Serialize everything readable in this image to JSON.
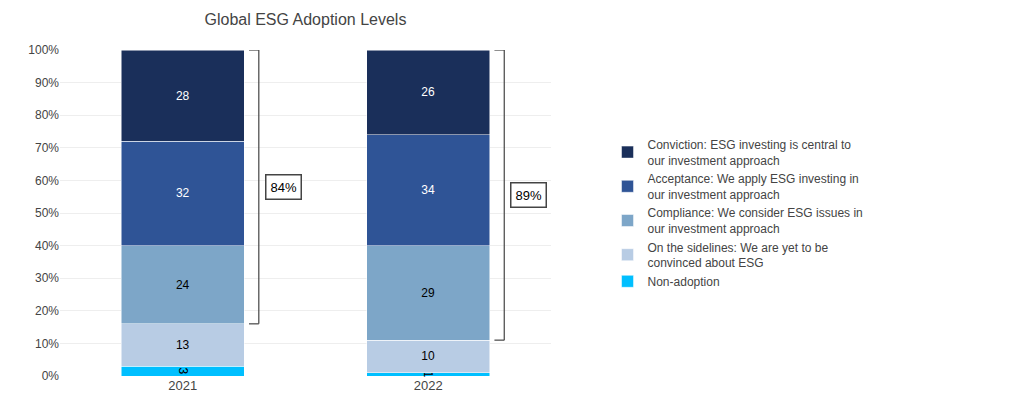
{
  "chart_data": {
    "type": "bar",
    "stacked": true,
    "title": "Global ESG Adoption Levels",
    "categories": [
      "2021",
      "2022"
    ],
    "series": [
      {
        "name": "Non-adoption",
        "color": "#00BFFF",
        "values": [
          3,
          1
        ]
      },
      {
        "name": "On the sidelines: We are yet to be\nconvinced about ESG",
        "color": "#b8cce4",
        "values": [
          13,
          10
        ]
      },
      {
        "name": "Compliance: We consider ESG issues in\nour investment approach",
        "color": "#7da6c8",
        "values": [
          24,
          29
        ]
      },
      {
        "name": "Acceptance: We apply ESG investing in\nour investment approach",
        "color": "#2f5496",
        "values": [
          32,
          34
        ]
      },
      {
        "name": "Conviction: ESG investing is central to\nour investment approach",
        "color": "#1a2f5a",
        "values": [
          28,
          26
        ]
      }
    ],
    "ylim": [
      0,
      100
    ],
    "yticks": [
      {
        "value": 0,
        "label": "0%"
      },
      {
        "value": 10,
        "label": "10%"
      },
      {
        "value": 20,
        "label": "20%"
      },
      {
        "value": 30,
        "label": "30%"
      },
      {
        "value": 40,
        "label": "40%"
      },
      {
        "value": 50,
        "label": "50%"
      },
      {
        "value": 60,
        "label": "60%"
      },
      {
        "value": 70,
        "label": "70%"
      },
      {
        "value": 80,
        "label": "80%"
      },
      {
        "value": 90,
        "label": "90%"
      },
      {
        "value": 100,
        "label": "100%"
      }
    ],
    "grid": true,
    "data_labels": true,
    "legend": "right",
    "annotations": [
      {
        "x": "2021",
        "text": "84%",
        "y0": 16,
        "y1": 100
      },
      {
        "x": "2022",
        "text": "89%",
        "y0": 11,
        "y1": 100
      }
    ]
  }
}
